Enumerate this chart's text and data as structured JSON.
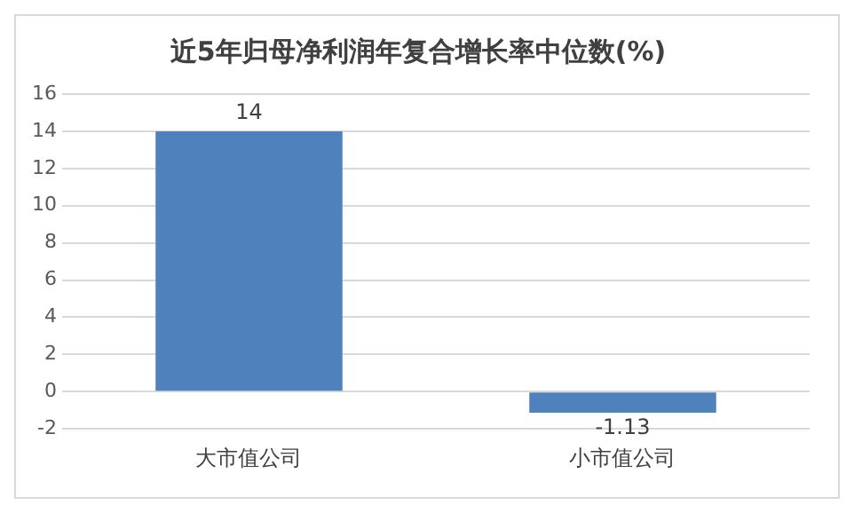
{
  "chart_data": {
    "type": "bar",
    "title": "近5年归母净利润年复合增长率中位数(%)",
    "categories": [
      "大市值公司",
      "小市值公司"
    ],
    "values": [
      14,
      -1.13
    ],
    "color": "#4f81bd",
    "ylim": [
      -2,
      16
    ],
    "yticks": [
      -2,
      0,
      2,
      4,
      6,
      8,
      10,
      12,
      14,
      16
    ],
    "grid": "y",
    "data_labels": true,
    "legend": false
  }
}
